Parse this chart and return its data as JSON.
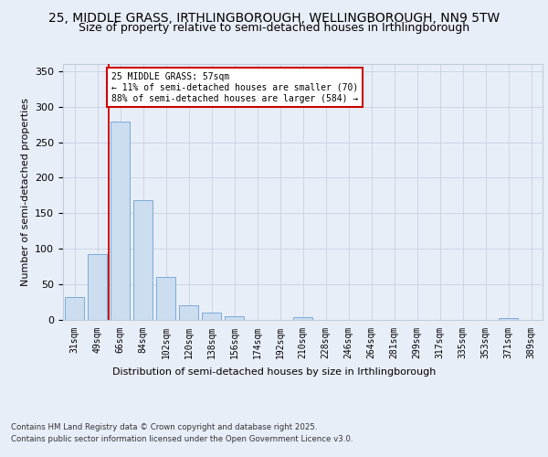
{
  "title_line1": "25, MIDDLE GRASS, IRTHLINGBOROUGH, WELLINGBOROUGH, NN9 5TW",
  "title_line2": "Size of property relative to semi-detached houses in Irthlingborough",
  "xlabel": "Distribution of semi-detached houses by size in Irthlingborough",
  "ylabel": "Number of semi-detached properties",
  "categories": [
    "31sqm",
    "49sqm",
    "66sqm",
    "84sqm",
    "102sqm",
    "120sqm",
    "138sqm",
    "156sqm",
    "174sqm",
    "192sqm",
    "210sqm",
    "228sqm",
    "246sqm",
    "264sqm",
    "281sqm",
    "299sqm",
    "317sqm",
    "335sqm",
    "353sqm",
    "371sqm",
    "389sqm"
  ],
  "values": [
    32,
    93,
    279,
    168,
    60,
    21,
    10,
    5,
    0,
    0,
    4,
    0,
    0,
    0,
    0,
    0,
    0,
    0,
    0,
    3,
    0
  ],
  "bar_color": "#ccddf0",
  "bar_edge_color": "#7aaad8",
  "red_line_x": 1.5,
  "annotation_label": "25 MIDDLE GRASS: 57sqm",
  "annotation_smaller": "← 11% of semi-detached houses are smaller (70)",
  "annotation_larger": "88% of semi-detached houses are larger (584) →",
  "ylim": [
    0,
    360
  ],
  "yticks": [
    0,
    50,
    100,
    150,
    200,
    250,
    300,
    350
  ],
  "bg_color": "#e8eef8",
  "plot_bg_color": "#e8eef8",
  "footer_line1": "Contains HM Land Registry data © Crown copyright and database right 2025.",
  "footer_line2": "Contains public sector information licensed under the Open Government Licence v3.0.",
  "title_fontsize": 10,
  "subtitle_fontsize": 9,
  "annotation_box_color": "#cc0000",
  "red_line_color": "#cc0000",
  "grid_color": "#c0ccdc"
}
